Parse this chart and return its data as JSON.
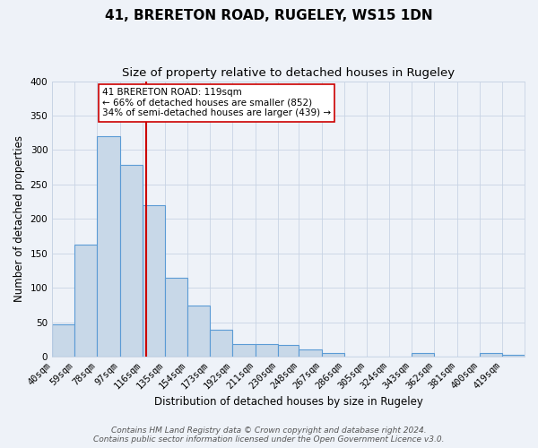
{
  "title": "41, BRERETON ROAD, RUGELEY, WS15 1DN",
  "subtitle": "Size of property relative to detached houses in Rugeley",
  "xlabel": "Distribution of detached houses by size in Rugeley",
  "ylabel": "Number of detached properties",
  "bin_labels": [
    "40sqm",
    "59sqm",
    "78sqm",
    "97sqm",
    "116sqm",
    "135sqm",
    "154sqm",
    "173sqm",
    "192sqm",
    "211sqm",
    "230sqm",
    "248sqm",
    "267sqm",
    "286sqm",
    "305sqm",
    "324sqm",
    "343sqm",
    "362sqm",
    "381sqm",
    "400sqm",
    "419sqm"
  ],
  "bin_edges": [
    40,
    59,
    78,
    97,
    116,
    135,
    154,
    173,
    192,
    211,
    230,
    248,
    267,
    286,
    305,
    324,
    343,
    362,
    381,
    400,
    419,
    438
  ],
  "bar_heights": [
    47,
    162,
    320,
    278,
    220,
    114,
    74,
    39,
    18,
    18,
    17,
    10,
    5,
    0,
    0,
    0,
    5,
    0,
    0,
    5,
    2
  ],
  "bar_color": "#c8d8e8",
  "bar_edge_color": "#5b9bd5",
  "vline_x": 119,
  "vline_color": "#cc0000",
  "ylim": [
    0,
    400
  ],
  "yticks": [
    0,
    50,
    100,
    150,
    200,
    250,
    300,
    350,
    400
  ],
  "annotation_text": "41 BRERETON ROAD: 119sqm\n← 66% of detached houses are smaller (852)\n34% of semi-detached houses are larger (439) →",
  "annotation_box_color": "#ffffff",
  "annotation_box_edge": "#cc0000",
  "footer_line1": "Contains HM Land Registry data © Crown copyright and database right 2024.",
  "footer_line2": "Contains public sector information licensed under the Open Government Licence v3.0.",
  "background_color": "#eef2f8",
  "grid_color": "#c8d4e4",
  "title_fontsize": 11,
  "subtitle_fontsize": 9.5,
  "axis_label_fontsize": 8.5,
  "tick_fontsize": 7.5,
  "footer_fontsize": 6.5
}
